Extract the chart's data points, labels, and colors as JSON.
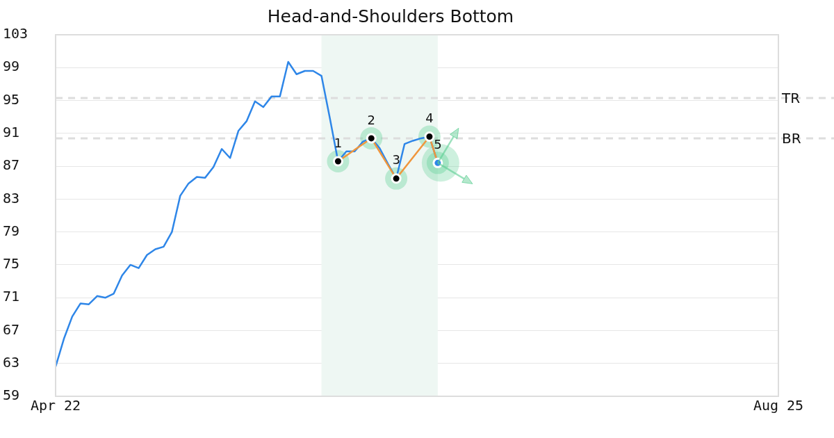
{
  "chart_data": {
    "type": "line",
    "title": "Head-and-Shoulders Bottom",
    "categories": [
      "Apr 22",
      null,
      null,
      null,
      null,
      null,
      null,
      null,
      null,
      null,
      null,
      null,
      null,
      null,
      null,
      null,
      null,
      null,
      null,
      null,
      null,
      null,
      null,
      null,
      null,
      null,
      null,
      null,
      null,
      null,
      null,
      null,
      null,
      null,
      null,
      null,
      null,
      null,
      null,
      null,
      null,
      null,
      null,
      null,
      null,
      null,
      null,
      null,
      null,
      null,
      null,
      null,
      null,
      null,
      null,
      null,
      null,
      null,
      null,
      null,
      null,
      null,
      null,
      null,
      null,
      null,
      null,
      null,
      null,
      null,
      null,
      null,
      null,
      null,
      null,
      null,
      null,
      null,
      null,
      null,
      null,
      null,
      null,
      null,
      null,
      null,
      null,
      "Aug 25"
    ],
    "series": [
      {
        "color": "#2e86e8",
        "marker": "none",
        "values": [
          62.6,
          66.0,
          68.7,
          70.3,
          70.2,
          71.2,
          71.0,
          71.5,
          73.7,
          75.0,
          74.6,
          76.2,
          76.9,
          77.2,
          79.0,
          83.4,
          84.9,
          85.7,
          85.6,
          86.9,
          89.1,
          88.0,
          91.3,
          92.5,
          94.9,
          94.2,
          95.5,
          95.5,
          99.7,
          98.2,
          98.6,
          98.6,
          98.0,
          92.9,
          87.6,
          88.8,
          88.8,
          90.0,
          90.4,
          89.2,
          87.3,
          85.5,
          89.7,
          90.1,
          90.4,
          90.6,
          87.4,
          null,
          null,
          null,
          null,
          null,
          null,
          null,
          null,
          null,
          null,
          null,
          null,
          null,
          null,
          null,
          null,
          null,
          null,
          null,
          null,
          null,
          null,
          null,
          null,
          null,
          null,
          null,
          null,
          null,
          null,
          null,
          null,
          null,
          null,
          null,
          null,
          null,
          null,
          null,
          null,
          null
        ]
      },
      {
        "color": "#f0963c",
        "marker": "circle",
        "values": [
          null,
          null,
          null,
          null,
          null,
          null,
          null,
          null,
          null,
          null,
          null,
          null,
          null,
          null,
          null,
          null,
          null,
          null,
          null,
          null,
          null,
          null,
          null,
          null,
          null,
          null,
          null,
          null,
          null,
          null,
          null,
          null,
          null,
          null,
          87.6,
          null,
          null,
          null,
          90.4,
          null,
          null,
          85.5,
          null,
          null,
          null,
          90.6,
          87.4,
          null,
          null,
          null,
          null,
          null,
          null,
          null,
          null,
          null,
          null,
          null,
          null,
          null,
          null,
          null,
          null,
          null,
          null,
          null,
          null,
          null,
          null,
          null,
          null,
          null,
          null,
          null,
          null,
          null,
          null,
          null,
          null,
          null,
          null,
          null,
          null,
          null,
          null,
          null,
          null,
          null
        ],
        "colors": [
          null,
          null,
          null,
          null,
          null,
          null,
          null,
          null,
          null,
          null,
          null,
          null,
          null,
          null,
          null,
          null,
          null,
          null,
          null,
          null,
          null,
          null,
          null,
          null,
          null,
          null,
          null,
          null,
          null,
          null,
          null,
          null,
          null,
          null,
          "#000000",
          null,
          null,
          null,
          "#000000",
          null,
          null,
          "#000000",
          null,
          null,
          null,
          "#000000",
          "#2e86e8",
          null,
          null,
          null,
          null,
          null,
          null,
          null,
          null,
          null,
          null,
          null,
          null,
          null,
          null,
          null,
          null,
          null,
          null,
          null,
          null,
          null,
          null,
          null,
          null,
          null,
          null,
          null,
          null,
          null,
          null,
          null,
          null,
          null,
          null,
          null,
          null,
          null,
          null,
          null,
          null,
          null
        ]
      }
    ],
    "ylim": [
      59,
      103
    ],
    "yticks": [
      59,
      63,
      67,
      71,
      75,
      79,
      83,
      87,
      91,
      95,
      99,
      103
    ],
    "grid": "y",
    "legend": false,
    "line_style": "solid",
    "ref_lines": [
      {
        "axis": "y",
        "value": 95.3,
        "label": "TR",
        "color": "#dddddd",
        "line_style": "dashed"
      },
      {
        "axis": "y",
        "value": 90.4,
        "label": "BR",
        "color": "#dddddd",
        "line_style": "dashed"
      }
    ],
    "annotations": [
      {
        "text": "1",
        "y": 87.6
      },
      {
        "text": "2",
        "y": 90.4
      },
      {
        "text": "3",
        "y": 85.5
      },
      {
        "text": "4",
        "y": 90.6
      },
      {
        "text": "5",
        "y": 87.4
      }
    ]
  }
}
